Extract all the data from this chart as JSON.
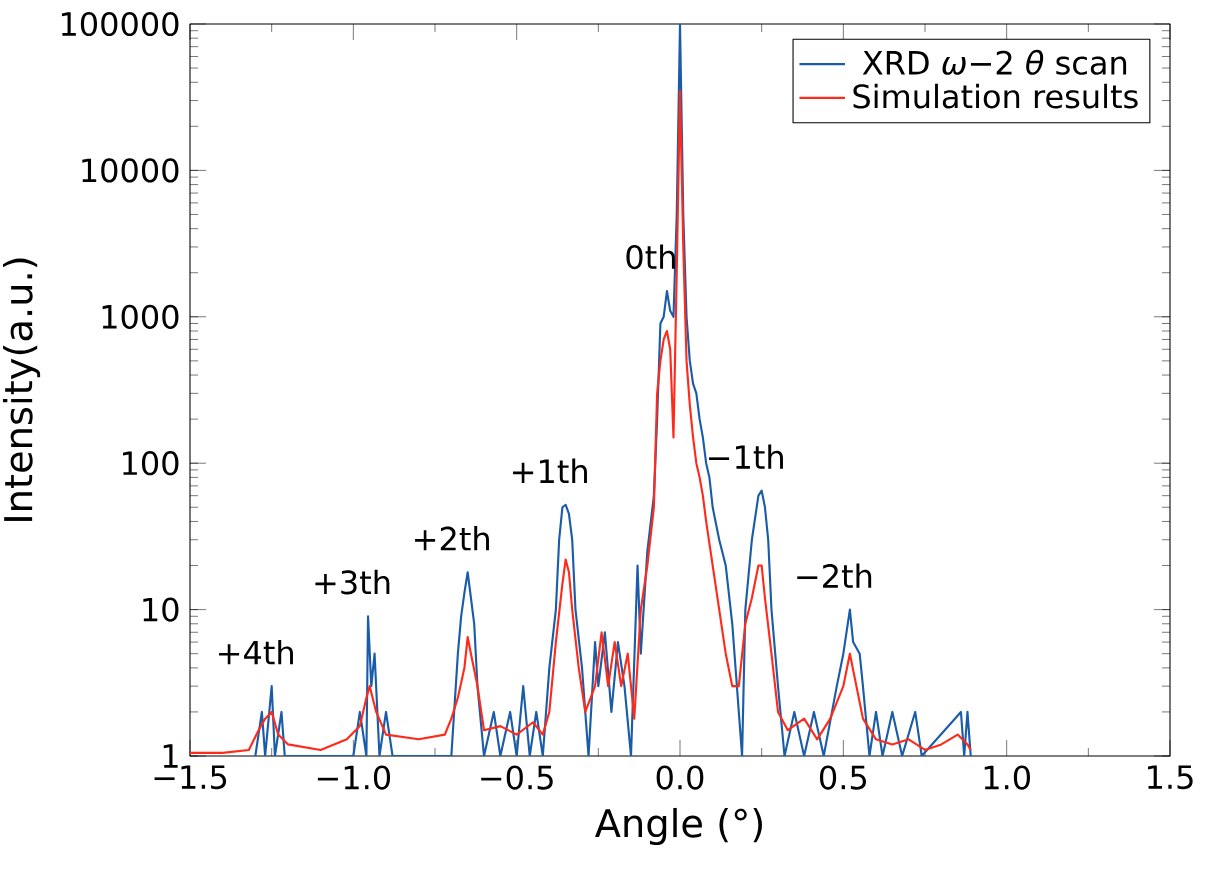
{
  "chart_data": {
    "type": "line",
    "xlabel": "Angle (°)",
    "ylabel": "Intensity(a.u.)",
    "log": "y",
    "legend": "top right",
    "xlim": [
      -1.5,
      1.5
    ],
    "ylim": [
      1,
      100000
    ],
    "xticks": [
      {
        "value": -1.5,
        "label": "−1.5"
      },
      {
        "value": -1,
        "label": "−1.0"
      },
      {
        "value": -0.5,
        "label": "−0.5"
      },
      {
        "value": 0,
        "label": "0.0"
      },
      {
        "value": 0.5,
        "label": "0.5"
      },
      {
        "value": 1,
        "label": "1.0"
      },
      {
        "value": 1.5,
        "label": "1.5"
      }
    ],
    "yticks": [
      1,
      10,
      100,
      1000,
      10000,
      100000
    ],
    "annotations": [
      {
        "text": "+4th",
        "x": -1.25,
        "y": 3
      },
      {
        "text": "+3th",
        "x": -0.955,
        "y": 9
      },
      {
        "text": "+2th",
        "x": -0.65,
        "y": 18
      },
      {
        "text": "+1th",
        "x": -0.35,
        "y": 52
      },
      {
        "text": "0th",
        "x": -0.04,
        "y": 1500
      },
      {
        "text": "−1th",
        "x": 0.25,
        "y": 65
      },
      {
        "text": "−2th",
        "x": 0.52,
        "y": 10
      }
    ],
    "series": [
      {
        "name": "XRD *ω*−2 *θ* scan",
        "color": "#1a5ca8",
        "x": [
          -1.3,
          -1.28,
          -1.27,
          -1.25,
          -1.24,
          -1.22,
          -1.21,
          -1.0,
          -0.98,
          -0.96,
          -0.955,
          -0.945,
          -0.935,
          -0.92,
          -0.9,
          -0.88,
          -0.7,
          -0.68,
          -0.67,
          -0.66,
          -0.65,
          -0.64,
          -0.63,
          -0.62,
          -0.6,
          -0.57,
          -0.55,
          -0.52,
          -0.5,
          -0.48,
          -0.46,
          -0.44,
          -0.42,
          -0.4,
          -0.38,
          -0.37,
          -0.36,
          -0.35,
          -0.34,
          -0.33,
          -0.32,
          -0.3,
          -0.28,
          -0.26,
          -0.25,
          -0.23,
          -0.21,
          -0.19,
          -0.17,
          -0.15,
          -0.13,
          -0.12,
          -0.1,
          -0.08,
          -0.07,
          -0.06,
          -0.05,
          -0.04,
          -0.03,
          -0.02,
          -0.01,
          0.0,
          0.01,
          0.02,
          0.03,
          0.04,
          0.05,
          0.06,
          0.07,
          0.08,
          0.09,
          0.1,
          0.12,
          0.14,
          0.16,
          0.18,
          0.19,
          0.2,
          0.22,
          0.24,
          0.25,
          0.26,
          0.27,
          0.28,
          0.3,
          0.32,
          0.35,
          0.38,
          0.41,
          0.44,
          0.48,
          0.5,
          0.52,
          0.53,
          0.55,
          0.56,
          0.58,
          0.6,
          0.62,
          0.65,
          0.68,
          0.72,
          0.74,
          0.86,
          0.87,
          0.88,
          0.89
        ],
        "values": [
          1,
          2,
          1,
          3,
          1,
          2,
          1,
          1,
          2,
          1,
          9,
          3,
          5,
          1,
          2,
          1,
          1,
          5,
          9,
          13,
          18,
          12,
          8,
          3,
          1,
          2,
          1,
          2,
          1,
          3,
          1,
          2,
          1,
          4,
          10,
          30,
          50,
          52,
          45,
          30,
          10,
          4,
          1,
          6,
          3,
          7,
          2,
          6,
          3,
          1,
          20,
          5,
          25,
          60,
          200,
          900,
          1000,
          1500,
          1100,
          1000,
          5000,
          100000,
          5000,
          1000,
          500,
          350,
          300,
          200,
          150,
          100,
          80,
          50,
          30,
          20,
          8,
          2,
          1,
          10,
          30,
          60,
          65,
          50,
          30,
          10,
          3,
          1,
          2,
          1,
          2,
          1,
          3,
          5,
          10,
          6,
          5,
          3,
          1,
          2,
          1,
          2,
          1,
          2,
          1,
          2,
          1,
          2,
          1
        ]
      },
      {
        "name": "Simulation results",
        "color": "#ff2a1a",
        "x": [
          -1.5,
          -1.4,
          -1.32,
          -1.29,
          -1.27,
          -1.25,
          -1.23,
          -1.2,
          -1.1,
          -1.02,
          -0.98,
          -0.96,
          -0.95,
          -0.93,
          -0.9,
          -0.8,
          -0.72,
          -0.7,
          -0.68,
          -0.66,
          -0.65,
          -0.64,
          -0.62,
          -0.6,
          -0.55,
          -0.5,
          -0.45,
          -0.42,
          -0.4,
          -0.38,
          -0.36,
          -0.35,
          -0.34,
          -0.33,
          -0.31,
          -0.29,
          -0.26,
          -0.24,
          -0.22,
          -0.2,
          -0.18,
          -0.16,
          -0.14,
          -0.12,
          -0.1,
          -0.08,
          -0.07,
          -0.06,
          -0.05,
          -0.04,
          -0.03,
          -0.02,
          -0.01,
          0.0,
          0.01,
          0.02,
          0.03,
          0.04,
          0.05,
          0.06,
          0.07,
          0.08,
          0.1,
          0.12,
          0.14,
          0.16,
          0.18,
          0.2,
          0.22,
          0.24,
          0.25,
          0.26,
          0.28,
          0.3,
          0.33,
          0.38,
          0.42,
          0.46,
          0.5,
          0.52,
          0.54,
          0.56,
          0.6,
          0.65,
          0.7,
          0.75,
          0.8,
          0.85,
          0.88,
          0.89
        ],
        "values": [
          1.05,
          1.05,
          1.1,
          1.5,
          1.8,
          2,
          1.4,
          1.2,
          1.1,
          1.3,
          1.6,
          2.5,
          3,
          2,
          1.4,
          1.3,
          1.4,
          1.8,
          2.5,
          4,
          6.5,
          5,
          3,
          1.5,
          1.6,
          1.4,
          1.7,
          1.4,
          2,
          6,
          15,
          22,
          18,
          10,
          4,
          2,
          3,
          7,
          3,
          6,
          3,
          5,
          1.8,
          10,
          20,
          50,
          300,
          500,
          700,
          800,
          600,
          150,
          2000,
          35000,
          3000,
          500,
          250,
          150,
          100,
          80,
          60,
          40,
          20,
          10,
          5,
          3,
          3,
          8,
          12,
          20,
          20,
          12,
          5,
          2,
          1.5,
          1.8,
          1.3,
          1.8,
          3,
          5,
          3,
          1.8,
          1.3,
          1.2,
          1.3,
          1.1,
          1.2,
          1.4,
          1.2,
          1.1
        ]
      }
    ]
  }
}
